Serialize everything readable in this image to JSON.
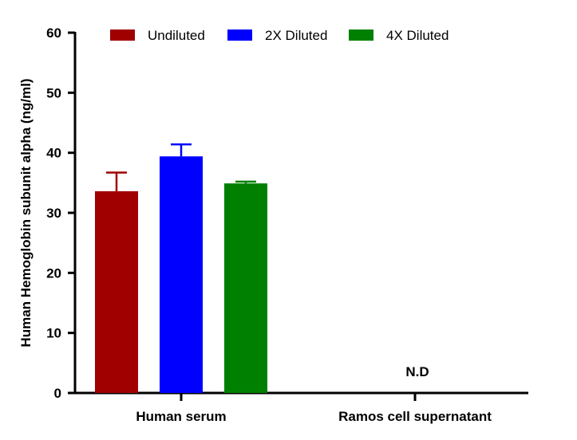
{
  "chart_data": {
    "type": "bar",
    "title": "",
    "xlabel": "",
    "ylabel": "Human Hemoglobin subunit alpha (ng/ml)",
    "ylim": [
      0,
      60
    ],
    "yticks": [
      0,
      10,
      20,
      30,
      40,
      50,
      60
    ],
    "grid": false,
    "legend_position": "top",
    "categories": [
      "Human serum",
      "Ramos cell supernatant"
    ],
    "series": [
      {
        "name": "Undiluted",
        "color": "#a00000",
        "values": [
          33.6,
          null
        ],
        "error": [
          3.1,
          null
        ]
      },
      {
        "name": "2X Diluted",
        "color": "#0000ff",
        "values": [
          39.4,
          null
        ],
        "error": [
          2.0,
          null
        ]
      },
      {
        "name": "4X Diluted",
        "color": "#008000",
        "values": [
          34.9,
          null
        ],
        "error": [
          0.3,
          null
        ]
      }
    ],
    "annotations": [
      {
        "category": "Ramos cell supernatant",
        "text": "N.D"
      }
    ]
  }
}
